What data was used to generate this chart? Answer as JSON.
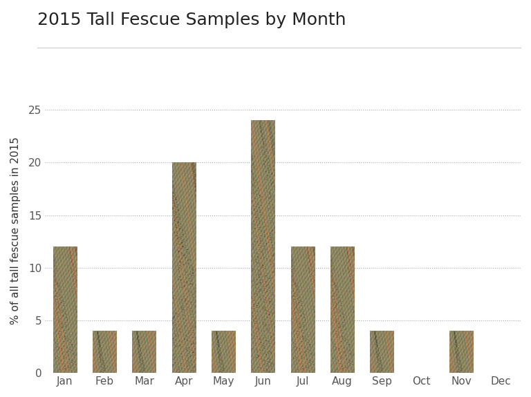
{
  "title": "2015 Tall Fescue Samples by Month",
  "months": [
    "Jan",
    "Feb",
    "Mar",
    "Apr",
    "May",
    "Jun",
    "Jul",
    "Aug",
    "Sep",
    "Oct",
    "Nov",
    "Dec"
  ],
  "values": [
    12,
    4,
    4,
    20,
    4,
    24,
    12,
    12,
    4,
    0,
    4,
    0
  ],
  "ylabel": "% of all tall fescue samples in 2015",
  "ylim": [
    0,
    27
  ],
  "yticks": [
    0,
    5,
    10,
    15,
    20,
    25
  ],
  "background_color": "#ffffff",
  "title_fontsize": 18,
  "axis_fontsize": 11,
  "tick_fontsize": 11,
  "bar_edge_color": "none",
  "grid_color": "#aaaaaa",
  "title_color": "#222222",
  "axis_label_color": "#333333",
  "tick_color": "#555555"
}
